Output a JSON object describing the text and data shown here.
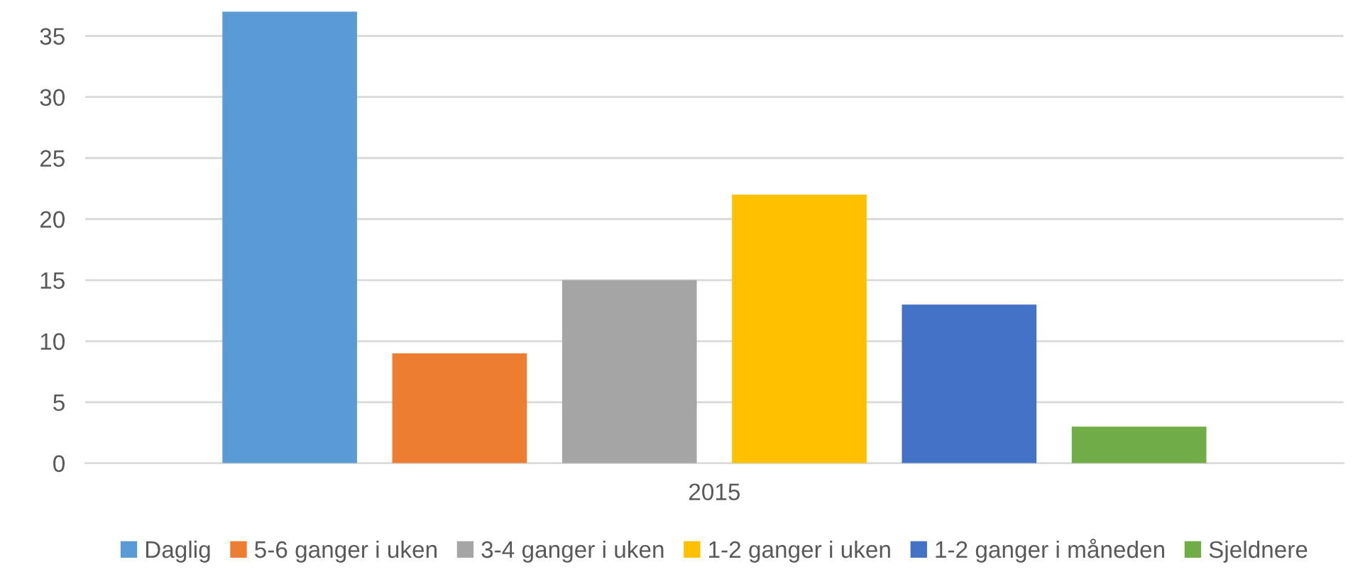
{
  "chart_data": {
    "type": "bar",
    "categories": [
      "2015"
    ],
    "series": [
      {
        "name": "Daglig",
        "color": "#5b9bd5",
        "values": [
          37
        ]
      },
      {
        "name": "5-6 ganger i uken",
        "color": "#ed7d31",
        "values": [
          9
        ]
      },
      {
        "name": "3-4 ganger i uken",
        "color": "#a5a5a5",
        "values": [
          15
        ]
      },
      {
        "name": "1-2 ganger i uken",
        "color": "#ffc000",
        "values": [
          22
        ]
      },
      {
        "name": "1-2 ganger i måneden",
        "color": "#4472c4",
        "values": [
          13
        ]
      },
      {
        "name": "Sjeldnere",
        "color": "#70ad47",
        "values": [
          3
        ]
      }
    ],
    "yticks": [
      0,
      5,
      10,
      15,
      20,
      25,
      30,
      35
    ],
    "ylim": [
      0,
      37
    ],
    "grid": "y",
    "legend": "bottom"
  }
}
